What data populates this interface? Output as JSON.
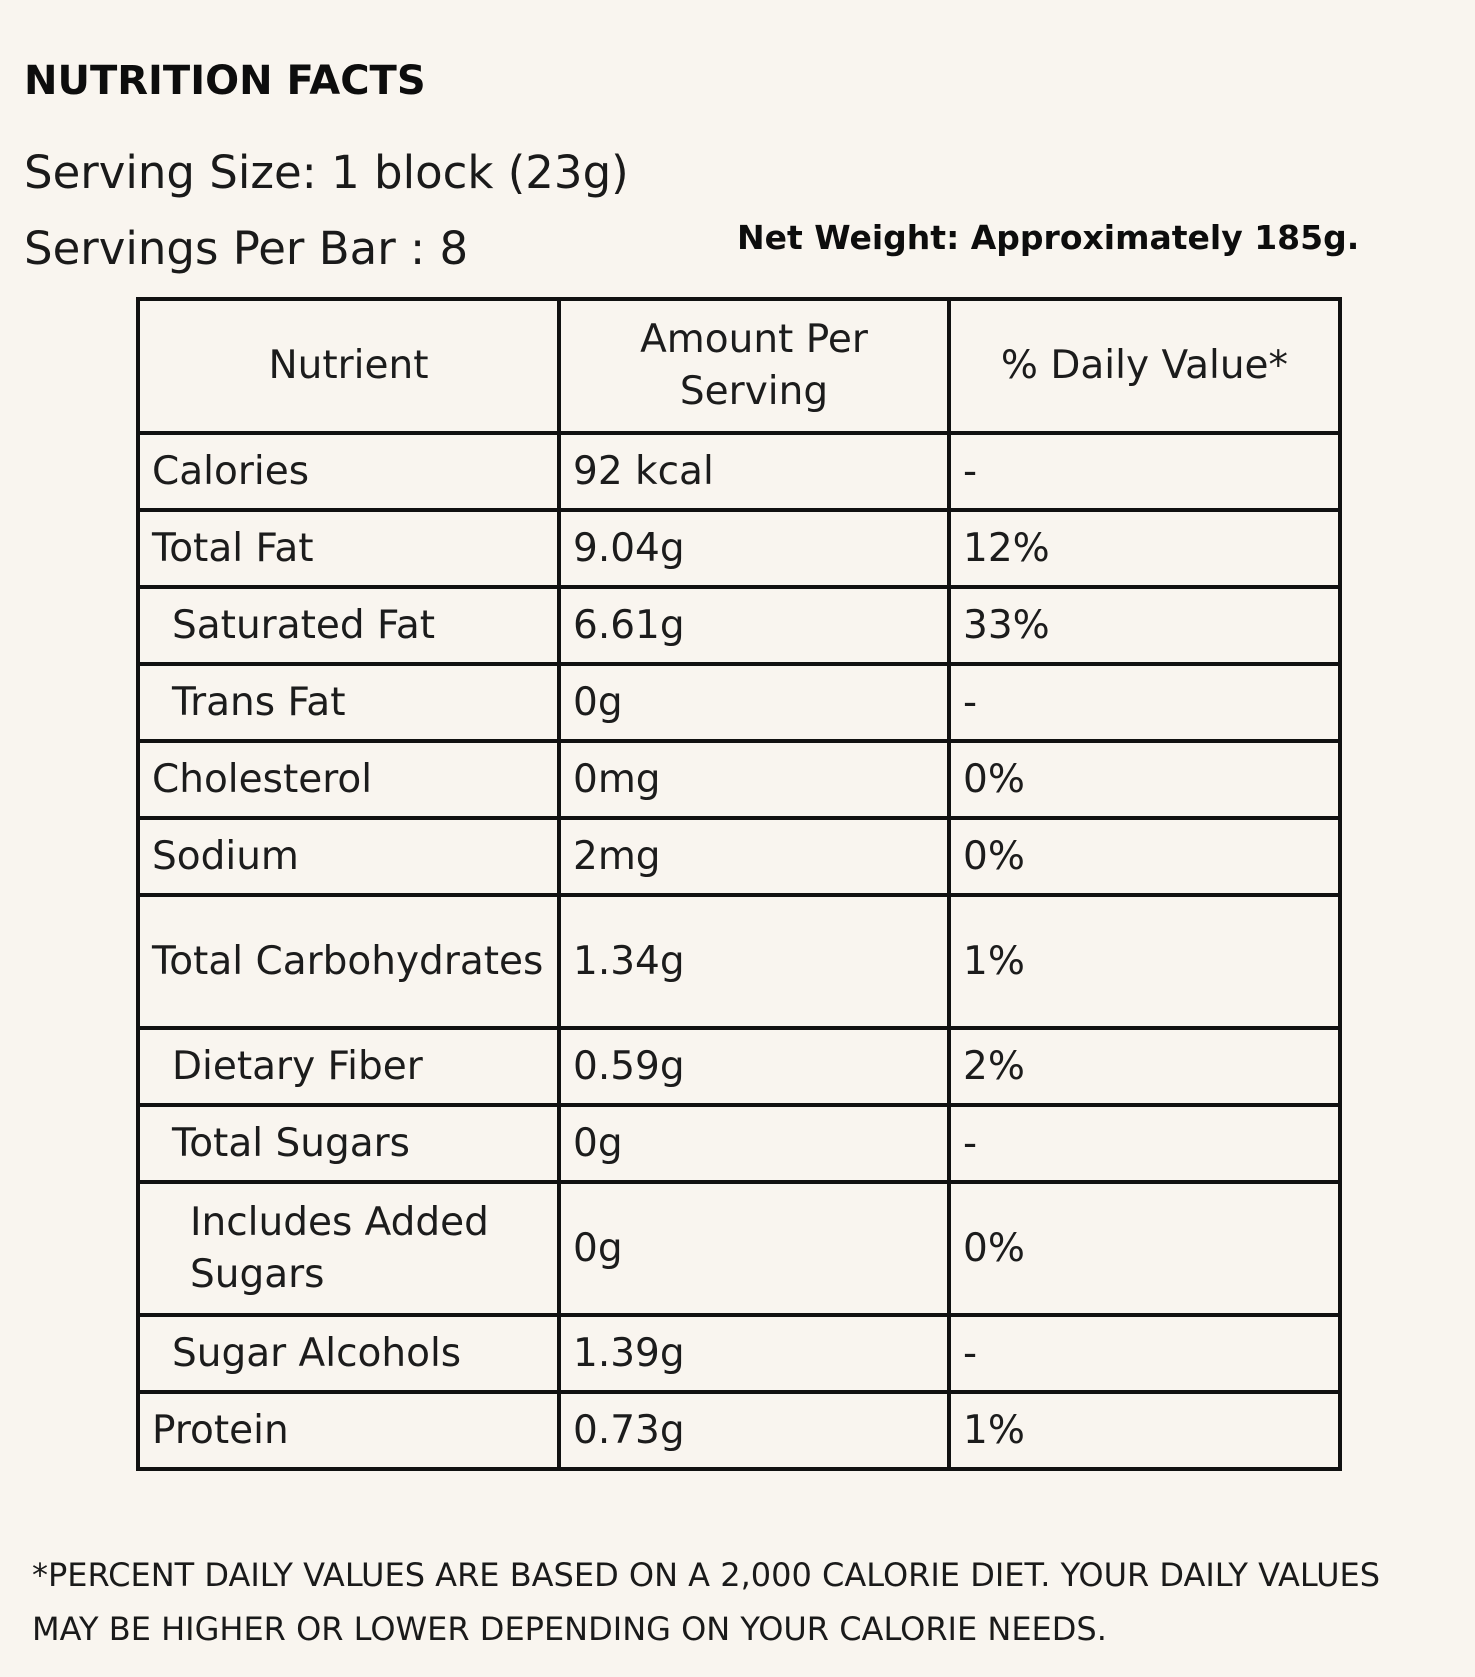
{
  "title": "NUTRITION FACTS",
  "serving_size": "Serving Size: 1 block (23g)",
  "servings_per_bar": "Servings Per Bar : 8",
  "net_weight": "Net Weight: Approximately 185g.",
  "table": {
    "headers": [
      "Nutrient",
      "Amount Per Serving",
      "% Daily Value*"
    ],
    "rows": [
      {
        "nutrient": "Calories",
        "amount": "92 kcal",
        "dv": "-"
      },
      {
        "nutrient": "Total Fat",
        "amount": "9.04g",
        "dv": "12%"
      },
      {
        "nutrient": "Saturated Fat",
        "amount": "6.61g",
        "dv": "33%"
      },
      {
        "nutrient": "Trans Fat",
        "amount": "0g",
        "dv": "-"
      },
      {
        "nutrient": "Cholesterol",
        "amount": "0mg",
        "dv": "0%"
      },
      {
        "nutrient": "Sodium",
        "amount": "2mg",
        "dv": "0%"
      },
      {
        "nutrient": "Total Carbohydrates",
        "amount": "1.34g",
        "dv": "1%"
      },
      {
        "nutrient": "Dietary Fiber",
        "amount": "0.59g",
        "dv": "2%"
      },
      {
        "nutrient": "Total Sugars",
        "amount": "0g",
        "dv": "-"
      },
      {
        "nutrient": "Includes Added Sugars",
        "amount": "0g",
        "dv": "0%"
      },
      {
        "nutrient": "Sugar Alcohols",
        "amount": "1.39g",
        "dv": "-"
      },
      {
        "nutrient": "Protein",
        "amount": "0.73g",
        "dv": "1%"
      }
    ]
  },
  "footnote": "*PERCENT DAILY VALUES ARE BASED ON A 2,000 CALORIE DIET. YOUR DAILY VALUES MAY BE HIGHER OR LOWER DEPENDING ON YOUR CALORIE NEEDS."
}
